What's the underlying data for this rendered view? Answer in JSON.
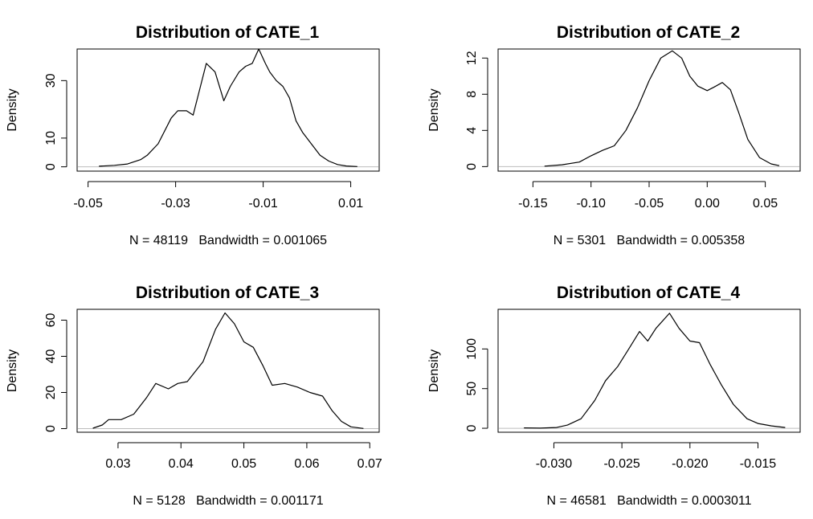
{
  "chart_data": [
    {
      "type": "line",
      "title": "Distribution of CATE_1",
      "xlabel": "N = 48119   Bandwidth = 0.001065",
      "ylabel": "Density",
      "xlim": [
        -0.0525,
        0.0165
      ],
      "ylim": [
        -1.5,
        41.0
      ],
      "xticks": [
        {
          "v": -0.05,
          "label": "-0.05"
        },
        {
          "v": -0.03,
          "label": "-0.03"
        },
        {
          "v": -0.01,
          "label": "-0.01"
        },
        {
          "v": 0.01,
          "label": "0.01"
        }
      ],
      "yticks": [
        {
          "v": 0,
          "label": "0"
        },
        {
          "v": 10,
          "label": "10"
        },
        {
          "v": 30,
          "label": "30"
        }
      ],
      "x": [
        -0.0475,
        -0.044,
        -0.041,
        -0.038,
        -0.0365,
        -0.034,
        -0.031,
        -0.0295,
        -0.0275,
        -0.026,
        -0.0245,
        -0.023,
        -0.021,
        -0.019,
        -0.0175,
        -0.0155,
        -0.014,
        -0.0125,
        -0.011,
        -0.0095,
        -0.0085,
        -0.007,
        -0.0055,
        -0.004,
        -0.0025,
        -0.001,
        0.001,
        0.003,
        0.005,
        0.007,
        0.009,
        0.0115
      ],
      "y": [
        0.2,
        0.5,
        1.0,
        2.5,
        4.0,
        8.0,
        17.0,
        19.5,
        19.5,
        18.0,
        27.0,
        36.0,
        33.0,
        23.0,
        28.0,
        33.0,
        35.0,
        36.0,
        41.0,
        36.0,
        33.0,
        30.0,
        28.0,
        24.0,
        16.0,
        12.0,
        8.0,
        4.0,
        2.0,
        0.8,
        0.3,
        0.1
      ],
      "grid": false,
      "legend": "none"
    },
    {
      "type": "line",
      "title": "Distribution of CATE_2",
      "xlabel": "N = 5301   Bandwidth = 0.005358",
      "ylabel": "Density",
      "xlim": [
        -0.18,
        0.08
      ],
      "ylim": [
        -0.5,
        13.0
      ],
      "xticks": [
        {
          "v": -0.15,
          "label": "-0.15"
        },
        {
          "v": -0.1,
          "label": "-0.10"
        },
        {
          "v": -0.05,
          "label": "-0.05"
        },
        {
          "v": 0.0,
          "label": "0.00"
        },
        {
          "v": 0.05,
          "label": "0.05"
        }
      ],
      "yticks": [
        {
          "v": 0,
          "label": "0"
        },
        {
          "v": 4,
          "label": "4"
        },
        {
          "v": 8,
          "label": "8"
        },
        {
          "v": 12,
          "label": "12"
        }
      ],
      "x": [
        -0.14,
        -0.125,
        -0.11,
        -0.1,
        -0.09,
        -0.08,
        -0.07,
        -0.06,
        -0.05,
        -0.04,
        -0.03,
        -0.022,
        -0.015,
        -0.008,
        0.0,
        0.006,
        0.013,
        0.02,
        0.027,
        0.035,
        0.045,
        0.055,
        0.062
      ],
      "y": [
        0.05,
        0.2,
        0.5,
        1.2,
        1.8,
        2.3,
        4.0,
        6.5,
        9.5,
        12.0,
        12.8,
        12.0,
        10.0,
        8.9,
        8.4,
        8.8,
        9.3,
        8.5,
        6.0,
        3.0,
        1.0,
        0.3,
        0.1
      ],
      "grid": false,
      "legend": "none"
    },
    {
      "type": "line",
      "title": "Distribution of CATE_3",
      "xlabel": "N = 5128   Bandwidth = 0.001171",
      "ylabel": "Density",
      "xlim": [
        0.0235,
        0.0715
      ],
      "ylim": [
        -2.0,
        66.0
      ],
      "xticks": [
        {
          "v": 0.03,
          "label": "0.03"
        },
        {
          "v": 0.04,
          "label": "0.04"
        },
        {
          "v": 0.05,
          "label": "0.05"
        },
        {
          "v": 0.06,
          "label": "0.06"
        },
        {
          "v": 0.07,
          "label": "0.07"
        }
      ],
      "yticks": [
        {
          "v": 0,
          "label": "0"
        },
        {
          "v": 20,
          "label": "20"
        },
        {
          "v": 40,
          "label": "40"
        },
        {
          "v": 60,
          "label": "60"
        }
      ],
      "x": [
        0.026,
        0.0275,
        0.0285,
        0.0305,
        0.0325,
        0.0345,
        0.036,
        0.038,
        0.0395,
        0.041,
        0.0435,
        0.0455,
        0.047,
        0.0485,
        0.05,
        0.0515,
        0.053,
        0.0545,
        0.0565,
        0.0585,
        0.0605,
        0.0625,
        0.064,
        0.0655,
        0.067,
        0.069
      ],
      "y": [
        0.2,
        2.0,
        5.0,
        5.0,
        8.0,
        17.0,
        25.0,
        22.0,
        25.0,
        26.0,
        37.0,
        55.0,
        64.0,
        58.0,
        48.0,
        45.0,
        35.0,
        24.0,
        25.0,
        23.0,
        20.0,
        18.0,
        10.0,
        4.0,
        1.0,
        0.1
      ],
      "grid": false,
      "legend": "none"
    },
    {
      "type": "line",
      "title": "Distribution of CATE_4",
      "xlabel": "N = 46581   Bandwidth = 0.0003011",
      "ylabel": "Density",
      "xlim": [
        -0.0341,
        -0.0119
      ],
      "ylim": [
        -5.0,
        150.0
      ],
      "xticks": [
        {
          "v": -0.03,
          "label": "-0.030"
        },
        {
          "v": -0.025,
          "label": "-0.025"
        },
        {
          "v": -0.02,
          "label": "-0.020"
        },
        {
          "v": -0.015,
          "label": "-0.015"
        }
      ],
      "yticks": [
        {
          "v": 0,
          "label": "0"
        },
        {
          "v": 50,
          "label": "50"
        },
        {
          "v": 100,
          "label": "100"
        }
      ],
      "x": [
        -0.0322,
        -0.031,
        -0.0298,
        -0.029,
        -0.028,
        -0.027,
        -0.0262,
        -0.0253,
        -0.0245,
        -0.0237,
        -0.0231,
        -0.0225,
        -0.0215,
        -0.0208,
        -0.02,
        -0.0193,
        -0.0185,
        -0.0177,
        -0.0168,
        -0.0158,
        -0.015,
        -0.014,
        -0.013
      ],
      "y": [
        0.5,
        0.2,
        1.0,
        4.0,
        12.0,
        35.0,
        60.0,
        78.0,
        100.0,
        122.0,
        110.0,
        126.0,
        145.0,
        126.0,
        110.0,
        108.0,
        80.0,
        55.0,
        30.0,
        12.0,
        6.0,
        3.0,
        1.0
      ],
      "grid": false,
      "legend": "none"
    }
  ]
}
